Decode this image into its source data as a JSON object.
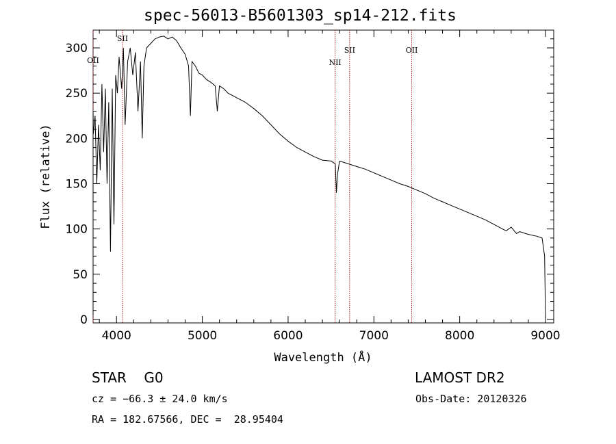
{
  "title": "spec-56013-B5601303_sp14-212.fits",
  "footer": {
    "class": "STAR    G0",
    "survey": "LAMOST DR2",
    "cz": "cz = −66.3 ± 24.0 km/s",
    "obs_date": "Obs-Date: 20120326",
    "coords": "RA = 182.67566, DEC =  28.95404"
  },
  "chart_data": {
    "type": "line",
    "xlabel": "Wavelength (Å)",
    "ylabel": "Flux (relative)",
    "xlim": [
      3700,
      9100
    ],
    "ylim": [
      0,
      320
    ],
    "xticks": [
      4000,
      5000,
      6000,
      7000,
      8000,
      9000
    ],
    "yticks": [
      0,
      50,
      100,
      150,
      200,
      250,
      300
    ],
    "series": [
      {
        "x": [
          3700,
          3710,
          3730,
          3750,
          3770,
          3790,
          3810,
          3830,
          3850,
          3870,
          3890,
          3910,
          3930,
          3950,
          3970,
          3990,
          4010,
          4030,
          4060,
          4080,
          4100,
          4130,
          4160,
          4190,
          4220,
          4250,
          4280,
          4300,
          4320,
          4350,
          4400,
          4450,
          4500,
          4550,
          4600,
          4650,
          4700,
          4750,
          4800,
          4840,
          4861,
          4880,
          4920,
          4960,
          5000,
          5050,
          5100,
          5150,
          5175,
          5200,
          5250,
          5300,
          5400,
          5500,
          5600,
          5700,
          5800,
          5900,
          6000,
          6100,
          6200,
          6300,
          6400,
          6500,
          6550,
          6563,
          6575,
          6600,
          6700,
          6800,
          6900,
          7000,
          7100,
          7200,
          7300,
          7400,
          7500,
          7600,
          7700,
          7800,
          7900,
          8000,
          8100,
          8200,
          8300,
          8400,
          8498,
          8542,
          8600,
          8662,
          8700,
          8800,
          8900,
          8960,
          8990,
          9000
        ],
        "y": [
          5,
          230,
          205,
          225,
          150,
          215,
          165,
          260,
          185,
          255,
          150,
          240,
          75,
          255,
          105,
          270,
          250,
          290,
          255,
          300,
          215,
          285,
          300,
          270,
          295,
          230,
          285,
          200,
          280,
          300,
          305,
          310,
          312,
          313,
          310,
          312,
          308,
          300,
          293,
          280,
          225,
          285,
          280,
          272,
          270,
          265,
          262,
          258,
          230,
          258,
          255,
          250,
          245,
          240,
          233,
          225,
          215,
          205,
          197,
          190,
          185,
          180,
          176,
          175,
          172,
          140,
          160,
          175,
          172,
          169,
          166,
          162,
          158,
          154,
          150,
          147,
          143,
          139,
          134,
          130,
          126,
          122,
          118,
          114,
          110,
          105,
          100,
          98,
          102,
          95,
          97,
          94,
          92,
          90,
          70,
          0
        ]
      }
    ],
    "annotations": [
      {
        "label": "OII",
        "x": 3727
      },
      {
        "label": "SII",
        "x": 4070
      },
      {
        "label": "NII",
        "x": 6548
      },
      {
        "label": "SII",
        "x": 6717
      },
      {
        "label": "OII",
        "x": 7440
      }
    ],
    "colors": {
      "line": "#000000",
      "marker_line": "#b22222"
    }
  }
}
